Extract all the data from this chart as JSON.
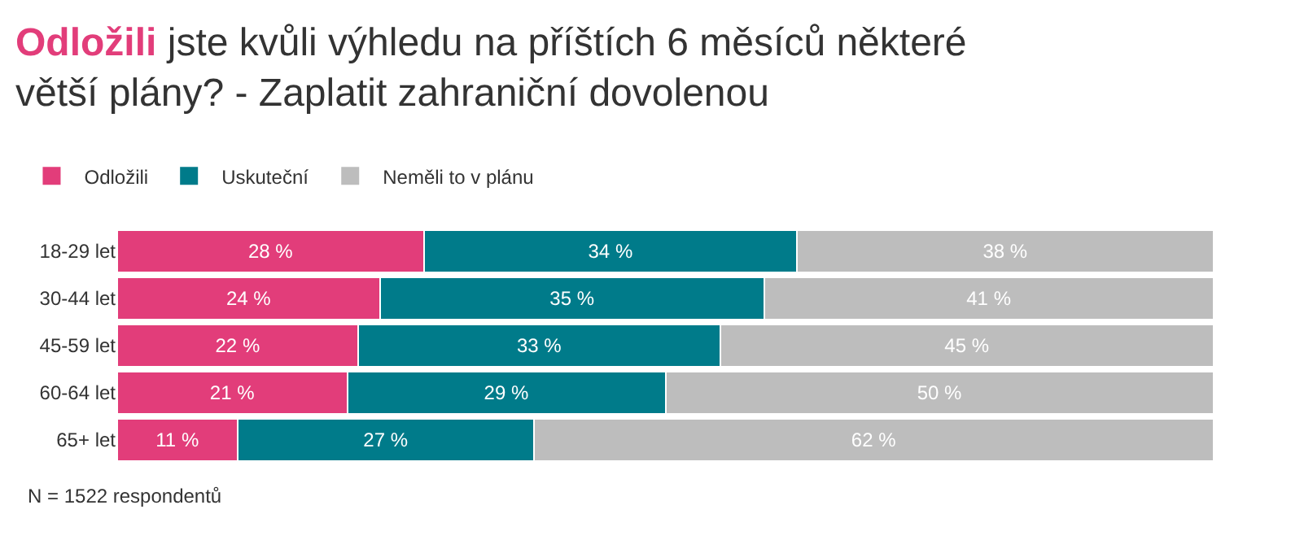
{
  "chart_data": {
    "type": "bar",
    "orientation": "horizontal",
    "stacked": true,
    "title": "Odložili jste kvůli výhledu na příštích 6 měsíců některé větší plány? - Zaplatit zahraniční dovolenou",
    "categories": [
      "18-29 let",
      "30-44 let",
      "45-59 let",
      "60-64 let",
      "65+ let"
    ],
    "series": [
      {
        "name": "Odložili",
        "color": "#e23d7a",
        "values": [
          28,
          24,
          22,
          21,
          11
        ],
        "value_labels": [
          "28 %",
          "24 %",
          "22 %",
          "21 %",
          "11 %"
        ]
      },
      {
        "name": "Uskuteční",
        "color": "#007b8a",
        "values": [
          34,
          35,
          33,
          29,
          27
        ],
        "value_labels": [
          "34 %",
          "35 %",
          "33 %",
          "29 %",
          "27 %"
        ]
      },
      {
        "name": "Neměli to v plánu",
        "color": "#bdbdbd",
        "values": [
          38,
          41,
          45,
          50,
          62
        ],
        "value_labels": [
          "38 %",
          "41 %",
          "45 %",
          "50 %",
          "62 %"
        ]
      }
    ],
    "legend": "top left",
    "annotations": [
      "N = 1522 respondentů"
    ]
  }
}
